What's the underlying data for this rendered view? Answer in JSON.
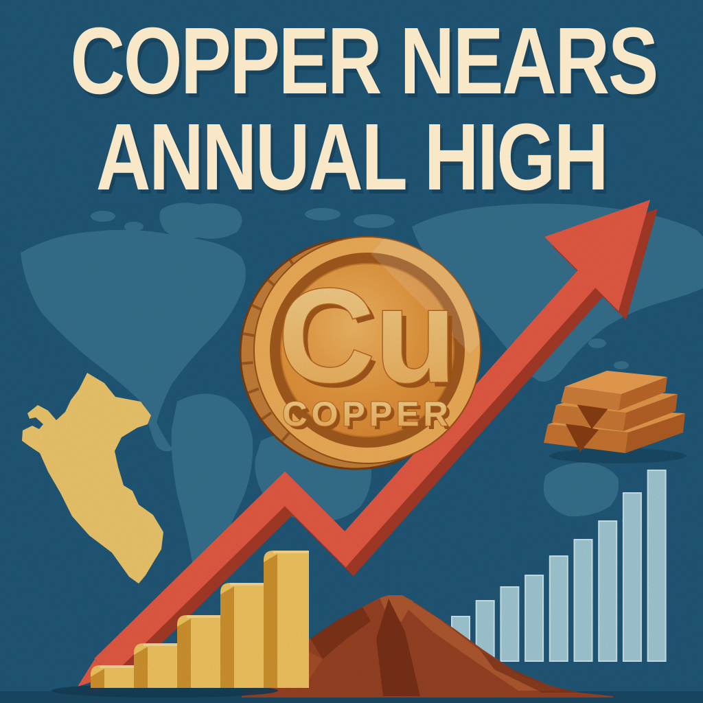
{
  "title": {
    "line1": "COPPER NEARS",
    "line2": "ANNUAL HIGH"
  },
  "coin": {
    "symbol": "Cu",
    "label": "COPPER"
  },
  "colors": {
    "background": "#215979",
    "world_map": "#4E8CA6",
    "bottom_strip": "#1A4A66",
    "title_text": "#F8E8C8",
    "arrow_red": "#E95C45",
    "arrow_red_shadow": "#A93B28",
    "peru_yellow": "#F3CB6E",
    "coin_face": "#E8993F",
    "coin_rim": "#F2B15A",
    "coin_ring_dark": "#A55C1E",
    "coin_letters": "#F6C87E",
    "ingot_orange": "#D3813B",
    "mountain_brown": "#9A4324"
  },
  "charts": {
    "yellow_bars": {
      "type": "bar",
      "values": [
        33,
        65,
        106,
        153,
        200
      ],
      "trend": "ascending",
      "colors": {
        "front": "#F6C862",
        "side": "#D3962F",
        "highlight": "#FADC96"
      }
    },
    "blue_bars": {
      "type": "bar",
      "values": [
        65,
        88,
        108,
        125,
        153,
        177,
        204,
        245,
        278
      ],
      "trend": "ascending",
      "colors": {
        "fill": "#A4CDD9",
        "stroke": "#D2E9EF"
      }
    }
  }
}
